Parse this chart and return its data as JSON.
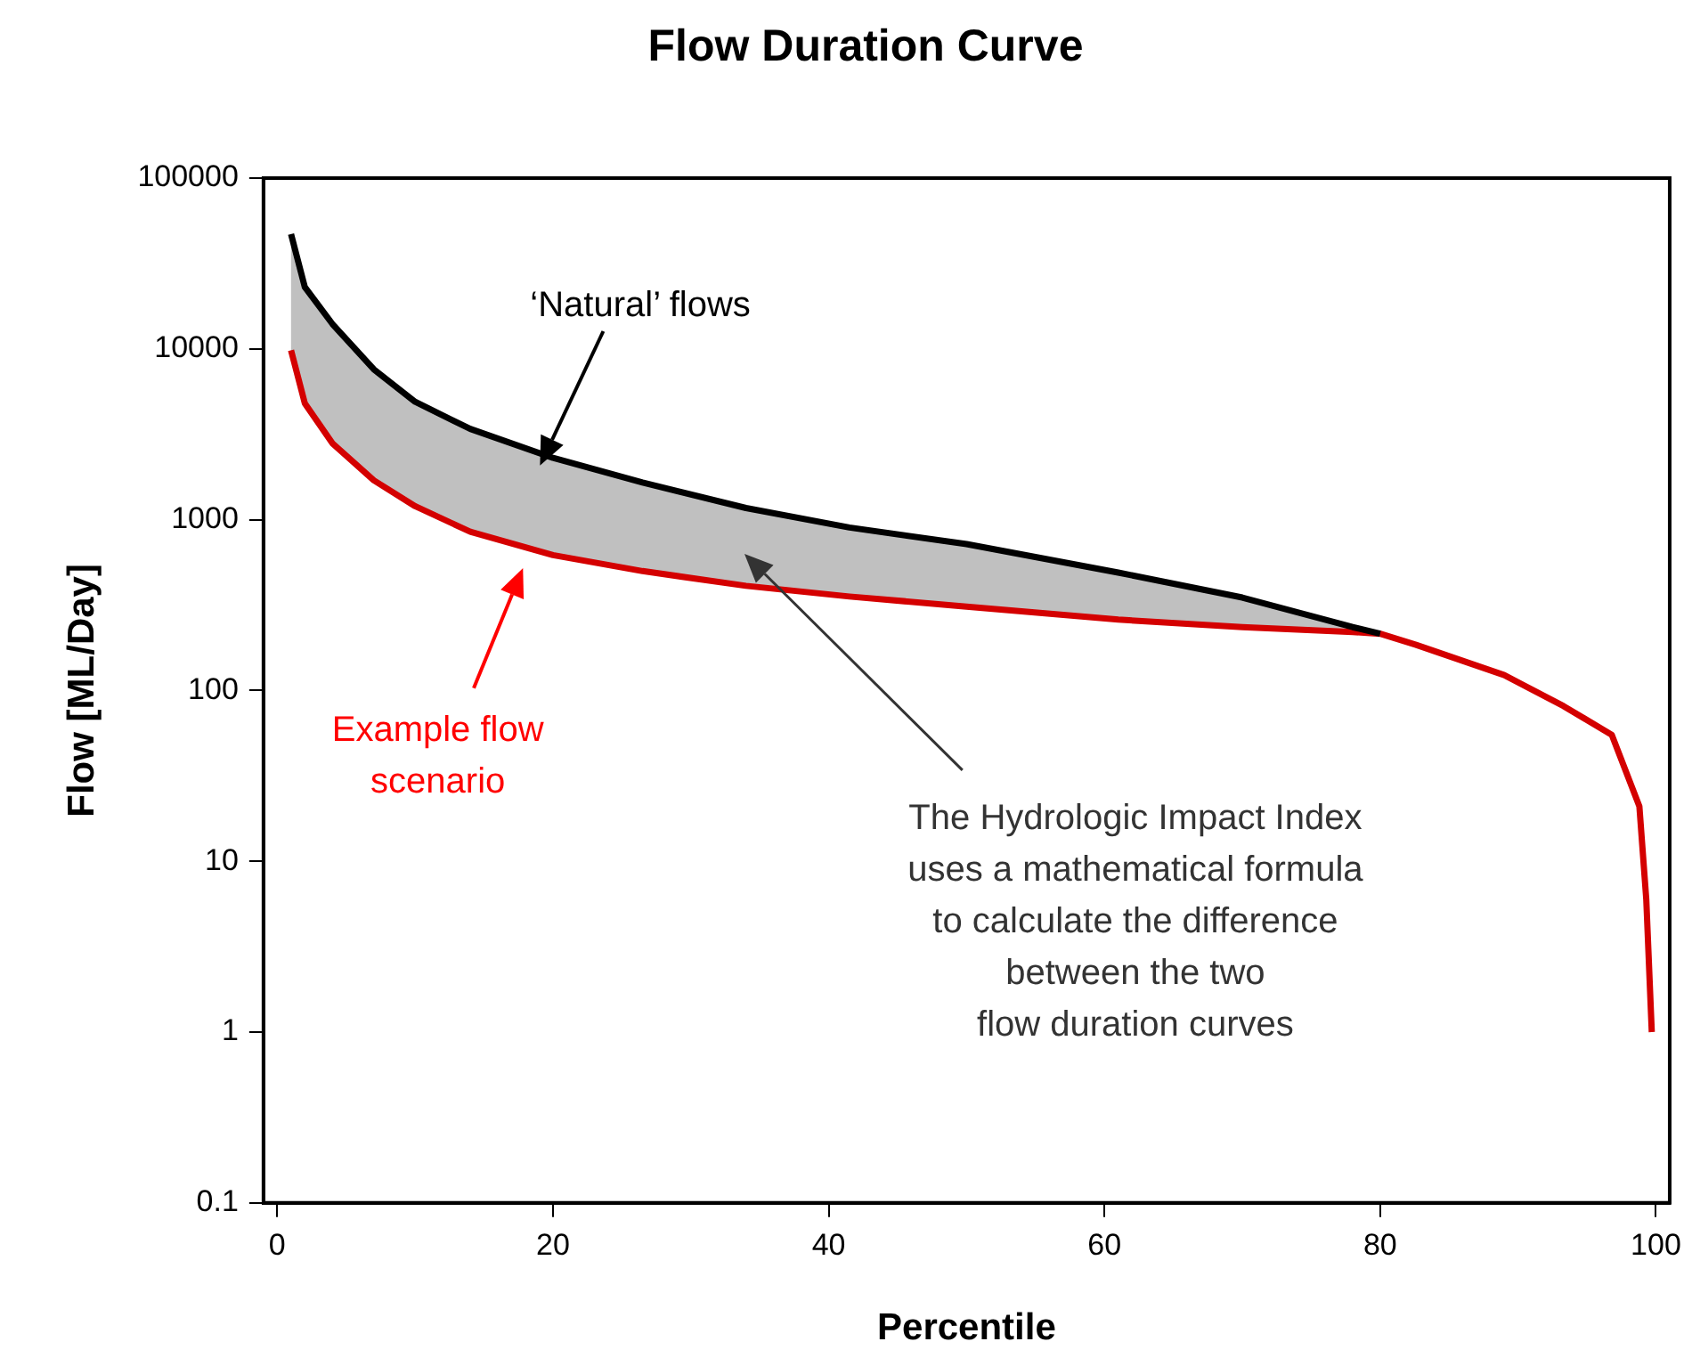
{
  "chart_data": {
    "type": "line",
    "title": "Flow Duration Curve",
    "xlabel": "Percentile",
    "ylabel": "Flow [ML/Day]",
    "xlim": [
      -1,
      101
    ],
    "xticks": [
      0,
      20,
      40,
      60,
      80,
      100
    ],
    "ylim": [
      0.1,
      100000
    ],
    "yticks": [
      0.1,
      1,
      10,
      100,
      1000,
      10000,
      100000
    ],
    "log": "y",
    "grid": false,
    "legend": false,
    "marker": "none",
    "line_style": "solid",
    "series": [
      {
        "color": "#000000",
        "x": [
          1,
          2,
          4,
          7,
          10,
          14,
          20,
          26.5,
          34,
          41.5,
          50,
          61,
          70,
          78,
          80
        ],
        "values": [
          47000,
          23000,
          14000,
          7600,
          4900,
          3400,
          2300,
          1650,
          1170,
          900,
          720,
          490,
          350,
          235,
          215
        ],
        "upper": [
          47000,
          23000,
          14000,
          7600,
          4900,
          3400,
          2300,
          1650,
          1170,
          900,
          720,
          490,
          350,
          235,
          215
        ],
        "lower": [
          9800,
          4800,
          2800,
          1700,
          1200,
          850,
          620,
          500,
          410,
          355,
          310,
          260,
          235,
          220,
          215
        ]
      },
      {
        "color": "#d40000",
        "x": [
          1,
          2,
          4,
          7,
          10,
          14,
          20,
          26.5,
          34,
          41.5,
          50,
          61,
          70,
          78,
          80,
          82.6,
          89,
          93.3,
          96.8,
          98.8,
          99.3,
          99.7
        ],
        "values": [
          9800,
          4800,
          2800,
          1700,
          1200,
          850,
          620,
          500,
          410,
          355,
          310,
          260,
          235,
          220,
          215,
          185,
          123,
          81,
          55,
          21,
          6,
          1
        ]
      }
    ],
    "annotations": [
      "‘Natural’ flows",
      "Example flow\nscenario",
      "The Hydrologic Impact Index\nuses a mathematical formula\nto calculate the difference\nbetween the two\nflow duration curves"
    ]
  }
}
